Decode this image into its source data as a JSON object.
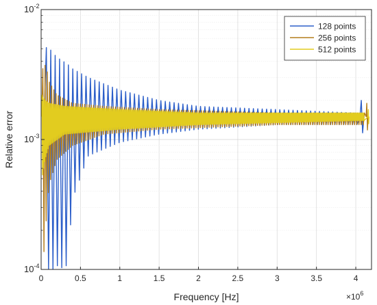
{
  "chart_data": {
    "type": "line",
    "title": "",
    "xlabel": "Frequency [Hz]",
    "ylabel": "Relative error",
    "x_exponent_label": "×10",
    "x_exponent_value": "6",
    "xscale": "linear",
    "yscale": "log",
    "xlim": [
      0,
      4200000
    ],
    "ylim": [
      0.0001,
      0.01
    ],
    "grid": true,
    "legend_position": "top-right",
    "x_ticks": [
      0,
      500000,
      1000000,
      1500000,
      2000000,
      2500000,
      3000000,
      3500000,
      4000000
    ],
    "x_tick_labels": [
      "0",
      "0.5",
      "1",
      "1.5",
      "2",
      "2.5",
      "3",
      "3.5",
      "4"
    ],
    "y_ticks": [
      0.0001,
      0.001,
      0.01
    ],
    "y_tick_base": "10",
    "y_tick_exponents": [
      "-4",
      "-3",
      "-2"
    ],
    "baseline": 0.0015,
    "series": [
      {
        "name": "128 points",
        "color": "#2b5ec9",
        "period_hz": 56000,
        "peak_maxima": [
          [
            96000,
            0.0051
          ],
          [
            168000,
            0.0045
          ],
          [
            224000,
            0.0042
          ],
          [
            280000,
            0.004
          ],
          [
            336000,
            0.0038
          ],
          [
            400000,
            0.0035
          ],
          [
            600000,
            0.003
          ],
          [
            1000000,
            0.0024
          ],
          [
            1500000,
            0.002
          ],
          [
            2000000,
            0.0018
          ],
          [
            3000000,
            0.0017
          ],
          [
            4000000,
            0.0016
          ]
        ],
        "peak_minima": [
          [
            96000,
            0.0001
          ],
          [
            168000,
            0.0001
          ],
          [
            224000,
            0.00011
          ],
          [
            280000,
            0.0001
          ],
          [
            336000,
            0.00011
          ],
          [
            400000,
            0.00035
          ],
          [
            600000,
            0.00075
          ],
          [
            1000000,
            0.00095
          ],
          [
            1500000,
            0.0011
          ],
          [
            2000000,
            0.0012
          ],
          [
            3000000,
            0.0013
          ],
          [
            4000000,
            0.0013
          ]
        ],
        "edge_spike": [
          4070000,
          0.002
        ]
      },
      {
        "name": "256 points",
        "color": "#b47d1c",
        "period_hz": 28000,
        "peak_maxima": [
          [
            20000,
            0.0035
          ],
          [
            60000,
            0.0038
          ],
          [
            100000,
            0.0028
          ],
          [
            200000,
            0.0022
          ],
          [
            400000,
            0.0019
          ],
          [
            800000,
            0.0018
          ],
          [
            1500000,
            0.0017
          ],
          [
            3000000,
            0.0016
          ],
          [
            4100000,
            0.0016
          ]
        ],
        "peak_minima": [
          [
            20000,
            0.0001
          ],
          [
            60000,
            0.00022
          ],
          [
            100000,
            0.00045
          ],
          [
            200000,
            0.0007
          ],
          [
            400000,
            0.0009
          ],
          [
            800000,
            0.0011
          ],
          [
            1500000,
            0.0012
          ],
          [
            3000000,
            0.0013
          ],
          [
            4100000,
            0.0013
          ]
        ],
        "edge_spike": [
          4140000,
          0.0019
        ]
      },
      {
        "name": "512 points",
        "color": "#e2cc1f",
        "period_hz": 14000,
        "peak_maxima": [
          [
            10000,
            0.0022
          ],
          [
            50000,
            0.002
          ],
          [
            100000,
            0.0019
          ],
          [
            300000,
            0.0018
          ],
          [
            1000000,
            0.0017
          ],
          [
            2000000,
            0.0016
          ],
          [
            4100000,
            0.0016
          ]
        ],
        "peak_minima": [
          [
            10000,
            0.0005
          ],
          [
            50000,
            0.0007
          ],
          [
            100000,
            0.0009
          ],
          [
            300000,
            0.0011
          ],
          [
            1000000,
            0.0012
          ],
          [
            2000000,
            0.0013
          ],
          [
            4100000,
            0.0014
          ]
        ],
        "edge_spike": [
          4160000,
          0.0017
        ]
      }
    ]
  }
}
